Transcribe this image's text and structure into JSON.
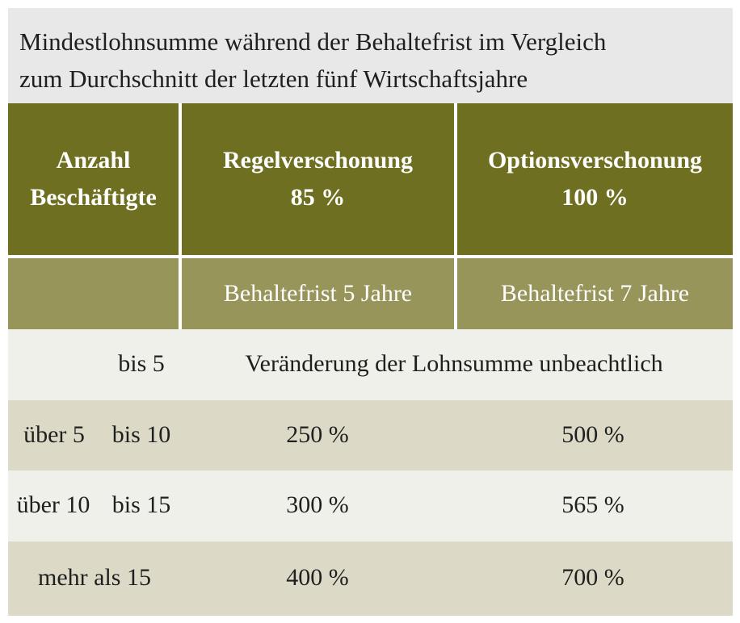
{
  "title": {
    "line1": "Mindestlohnsumme während der Behaltefrist im Vergleich",
    "line2": "zum Durchschnitt der letzten fünf Wirtschaftsjahre"
  },
  "header": {
    "col1_line1": "Anzahl",
    "col1_line2": "Beschäftigte",
    "col2_line1": "Regelverschonung",
    "col2_line2": "85 %",
    "col3_line1": "Optionsverschonung",
    "col3_line2": "100 %"
  },
  "subheader": {
    "col2": "Behaltefrist 5 Jahre",
    "col3": "Behaltefrist 7 Jahre"
  },
  "rows": [
    {
      "from": "",
      "to": "bis 5",
      "merged": "Veränderung der Lohnsumme unbeachtlich"
    },
    {
      "from": "über 5",
      "to": "bis 10",
      "regel": "250 %",
      "option": "500 %"
    },
    {
      "from": "über 10",
      "to": "bis 15",
      "regel": "300 %",
      "option": "565 %"
    },
    {
      "label": "mehr als 15",
      "regel": "400 %",
      "option": "700 %"
    }
  ]
}
